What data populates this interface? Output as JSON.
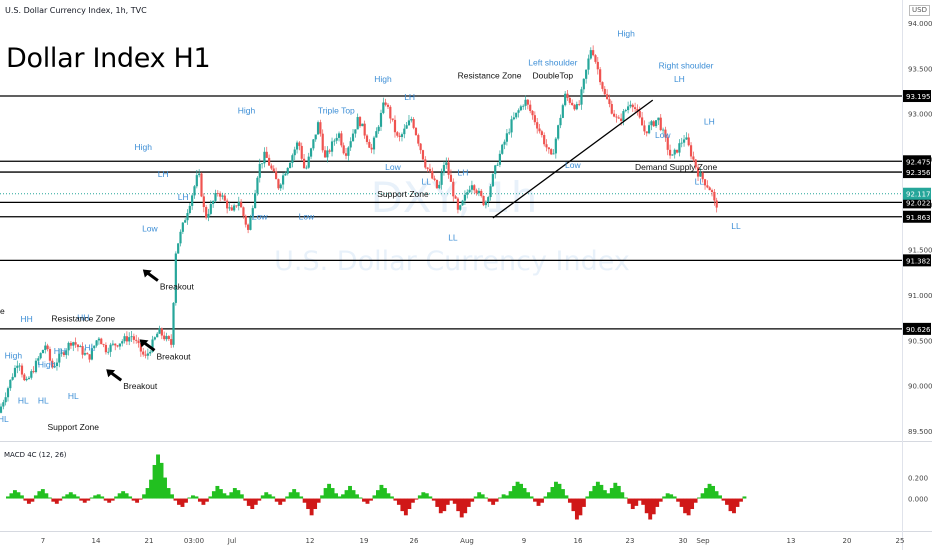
{
  "header": {
    "symbol_line": "U.S. Dollar Currency Index, 1h, TVC",
    "currency": "USD",
    "big_title": "Dollar Index H1"
  },
  "watermark": {
    "ticker": "DXY, 1h",
    "name": "U.S. Dollar Currency Index"
  },
  "colors": {
    "up": "#26a69a",
    "down": "#ef5350",
    "macd_up": "#22c020",
    "macd_down": "#d01818",
    "label": "#3e8fd6",
    "last_price_bg": "#26a69a"
  },
  "chart_data": [
    {
      "type": "candlestick",
      "title": "Dollar Index H1",
      "ylim": [
        89.4,
        94.1
      ],
      "y_ticks": [
        89.5,
        90,
        90.5,
        91,
        91.5,
        92,
        92.5,
        93,
        93.5,
        94
      ],
      "y_tick_labels": [
        "89.500",
        "90.000",
        "90.500",
        "91.000",
        "91.500",
        "92.000",
        "92.500",
        "93.000",
        "93.500",
        "94.000"
      ],
      "x_tick_labels": [
        "7",
        "14",
        "21",
        "03:00",
        "Jul",
        "12",
        "19",
        "26",
        "Aug",
        "9",
        "16",
        "23",
        "30",
        "Sep",
        "13",
        "20",
        "25"
      ],
      "price_path": [
        [
          0,
          89.7
        ],
        [
          6,
          90.3
        ],
        [
          8,
          90.0
        ],
        [
          14,
          90.45
        ],
        [
          16,
          90.2
        ],
        [
          22,
          90.5
        ],
        [
          27,
          90.3
        ],
        [
          30,
          90.55
        ],
        [
          32,
          90.4
        ],
        [
          40,
          90.55
        ],
        [
          44,
          90.3
        ],
        [
          48,
          90.6
        ],
        [
          52,
          90.45
        ],
        [
          53,
          91.45
        ],
        [
          54,
          91.6
        ],
        [
          58,
          92.1
        ],
        [
          60,
          92.35
        ],
        [
          62,
          91.85
        ],
        [
          66,
          92.15
        ],
        [
          70,
          91.9
        ],
        [
          72,
          92.05
        ],
        [
          75,
          91.7
        ],
        [
          78,
          92.4
        ],
        [
          80,
          92.55
        ],
        [
          84,
          92.2
        ],
        [
          90,
          92.7
        ],
        [
          92,
          92.35
        ],
        [
          96,
          92.9
        ],
        [
          98,
          92.5
        ],
        [
          102,
          92.8
        ],
        [
          104,
          92.55
        ],
        [
          108,
          92.95
        ],
        [
          112,
          92.6
        ],
        [
          116,
          93.15
        ],
        [
          120,
          92.7
        ],
        [
          124,
          92.95
        ],
        [
          128,
          92.45
        ],
        [
          132,
          92.15
        ],
        [
          134,
          92.5
        ],
        [
          138,
          91.9
        ],
        [
          142,
          92.25
        ],
        [
          146,
          92.0
        ],
        [
          150,
          92.5
        ],
        [
          154,
          92.9
        ],
        [
          158,
          93.15
        ],
        [
          162,
          92.85
        ],
        [
          166,
          92.5
        ],
        [
          170,
          93.2
        ],
        [
          174,
          93.05
        ],
        [
          178,
          93.75
        ],
        [
          182,
          93.2
        ],
        [
          186,
          92.9
        ],
        [
          190,
          93.15
        ],
        [
          194,
          92.8
        ],
        [
          198,
          92.95
        ],
        [
          202,
          92.5
        ],
        [
          206,
          92.75
        ],
        [
          210,
          92.35
        ],
        [
          214,
          92.15
        ],
        [
          215,
          92.0
        ]
      ],
      "last_price": 92.117,
      "levels": [
        93.195,
        92.475,
        92.356,
        92.022,
        91.863,
        91.382,
        90.626
      ],
      "level_labels": [
        "93.195",
        "92.475",
        "92.356",
        "92.022",
        "91.863",
        "91.382",
        "90.626"
      ],
      "last_price_label": "92.117",
      "trendlines": [
        {
          "from": [
            148,
            91.85
          ],
          "to": [
            196,
            93.15
          ]
        }
      ],
      "annotations": [
        {
          "text": "HH",
          "x": 8,
          "y": 90.7
        },
        {
          "text": "High",
          "x": 4,
          "y": 90.3
        },
        {
          "text": "HL",
          "x": 1,
          "y": 89.6
        },
        {
          "text": "HL",
          "x": 7,
          "y": 89.8
        },
        {
          "text": "High",
          "x": 14,
          "y": 90.2
        },
        {
          "text": "HL",
          "x": 13,
          "y": 89.8
        },
        {
          "text": "HH",
          "x": 18,
          "y": 90.35
        },
        {
          "text": "HL",
          "x": 22,
          "y": 89.85
        },
        {
          "text": "HH",
          "x": 25,
          "y": 90.72
        },
        {
          "text": "HL",
          "x": 27,
          "y": 90.39
        },
        {
          "text": "High",
          "x": 43,
          "y": 92.6
        },
        {
          "text": "LH",
          "x": 49,
          "y": 92.3
        },
        {
          "text": "Low",
          "x": 45,
          "y": 91.7
        },
        {
          "text": "LH",
          "x": 55,
          "y": 92.05
        },
        {
          "text": "Low",
          "x": 78,
          "y": 91.83
        },
        {
          "text": "High",
          "x": 74,
          "y": 93.0
        },
        {
          "text": "Low",
          "x": 92,
          "y": 91.83
        },
        {
          "text": "Triple Top",
          "x": 101,
          "y": 93.0
        },
        {
          "text": "High",
          "x": 115,
          "y": 93.35
        },
        {
          "text": "LH",
          "x": 123,
          "y": 93.15
        },
        {
          "text": "Low",
          "x": 118,
          "y": 92.38
        },
        {
          "text": "LL",
          "x": 128,
          "y": 92.22
        },
        {
          "text": "LH",
          "x": 139,
          "y": 92.32
        },
        {
          "text": "LL",
          "x": 136,
          "y": 91.6
        },
        {
          "text": "Low",
          "x": 172,
          "y": 92.4
        },
        {
          "text": "Left shoulder",
          "x": 166,
          "y": 93.53
        },
        {
          "text": "High",
          "x": 188,
          "y": 93.85
        },
        {
          "text": "Right shoulder",
          "x": 206,
          "y": 93.5
        },
        {
          "text": "LH",
          "x": 204,
          "y": 93.35
        },
        {
          "text": "Low",
          "x": 199,
          "y": 92.73
        },
        {
          "text": "LH",
          "x": 213,
          "y": 92.88
        },
        {
          "text": "LL",
          "x": 210,
          "y": 92.22
        },
        {
          "text": "LL",
          "x": 221,
          "y": 91.73
        }
      ],
      "text_labels": [
        {
          "text": "Resistance Zone",
          "x": 147,
          "y": 93.39
        },
        {
          "text": "DoubleTop",
          "x": 166,
          "y": 93.39
        },
        {
          "text": "Demand Supply Zone",
          "x": 203,
          "y": 92.38
        },
        {
          "text": "Support Zone",
          "x": 121,
          "y": 92.08
        },
        {
          "text": "Resistance Zone",
          "x": 25,
          "y": 90.71
        },
        {
          "text": "Support Zone",
          "x": 22,
          "y": 89.51
        },
        {
          "text": "e",
          "x": 0,
          "y": 90.79
        }
      ],
      "breakouts": [
        {
          "text": "Breakout",
          "x": 48,
          "y": 91.06
        },
        {
          "text": "Breakout",
          "x": 47,
          "y": 90.29
        },
        {
          "text": "Breakout",
          "x": 37,
          "y": 89.96
        }
      ]
    },
    {
      "type": "bar",
      "title": "MACD 4C (12, 26)",
      "ylim": [
        -0.3,
        0.52
      ],
      "y_ticks": [
        0.2,
        0.0
      ],
      "y_tick_labels": [
        "0.200",
        "0.000"
      ],
      "histogram": [
        0.02,
        0.05,
        0.08,
        0.06,
        0.03,
        -0.02,
        -0.05,
        -0.03,
        0.03,
        0.07,
        0.09,
        0.05,
        0.01,
        -0.03,
        -0.05,
        -0.02,
        0.02,
        0.04,
        0.06,
        0.04,
        0.02,
        -0.02,
        -0.04,
        -0.02,
        0.01,
        0.03,
        0.04,
        0.02,
        -0.02,
        -0.04,
        -0.02,
        0.02,
        0.05,
        0.07,
        0.05,
        0.02,
        -0.02,
        -0.04,
        -0.01,
        0.04,
        0.1,
        0.18,
        0.32,
        0.42,
        0.34,
        0.2,
        0.1,
        0.04,
        -0.02,
        -0.06,
        -0.08,
        -0.04,
        0.01,
        0.03,
        0.02,
        -0.03,
        -0.06,
        -0.03,
        0.02,
        0.07,
        0.12,
        0.09,
        0.05,
        0.03,
        0.06,
        0.1,
        0.08,
        0.04,
        -0.02,
        -0.07,
        -0.1,
        -0.06,
        -0.02,
        0.03,
        0.06,
        0.04,
        0.02,
        -0.03,
        -0.06,
        -0.03,
        0.02,
        0.06,
        0.09,
        0.06,
        0.02,
        -0.04,
        -0.1,
        -0.16,
        -0.1,
        -0.04,
        0.03,
        0.1,
        0.14,
        0.1,
        0.05,
        0.02,
        0.04,
        0.08,
        0.12,
        0.08,
        0.04,
        0.01,
        -0.03,
        -0.05,
        -0.02,
        0.03,
        0.08,
        0.13,
        0.1,
        0.05,
        0.02,
        -0.02,
        -0.06,
        -0.12,
        -0.16,
        -0.1,
        -0.04,
        -0.01,
        0.03,
        0.06,
        0.05,
        0.02,
        -0.02,
        -0.08,
        -0.14,
        -0.12,
        -0.06,
        -0.02,
        -0.05,
        -0.12,
        -0.18,
        -0.14,
        -0.08,
        -0.03,
        0.02,
        0.06,
        0.04,
        0.01,
        -0.03,
        -0.06,
        -0.03,
        0.01,
        0.04,
        0.03,
        0.07,
        0.12,
        0.16,
        0.14,
        0.1,
        0.06,
        0.02,
        -0.03,
        -0.07,
        -0.04,
        0.02,
        0.06,
        0.11,
        0.16,
        0.14,
        0.09,
        0.03,
        -0.04,
        -0.12,
        -0.2,
        -0.16,
        -0.08,
        0.02,
        0.07,
        0.12,
        0.16,
        0.13,
        0.08,
        0.05,
        0.1,
        0.15,
        0.12,
        0.06,
        0.01,
        -0.05,
        -0.1,
        -0.07,
        -0.02,
        -0.06,
        -0.14,
        -0.2,
        -0.15,
        -0.08,
        -0.03,
        0.02,
        0.05,
        0.04,
        0.02,
        -0.03,
        -0.08,
        -0.14,
        -0.16,
        -0.1,
        -0.04,
        0.01,
        0.05,
        0.1,
        0.14,
        0.12,
        0.07,
        0.03,
        -0.02,
        -0.06,
        -0.12,
        -0.14,
        -0.08,
        -0.03,
        0.02
      ]
    }
  ]
}
